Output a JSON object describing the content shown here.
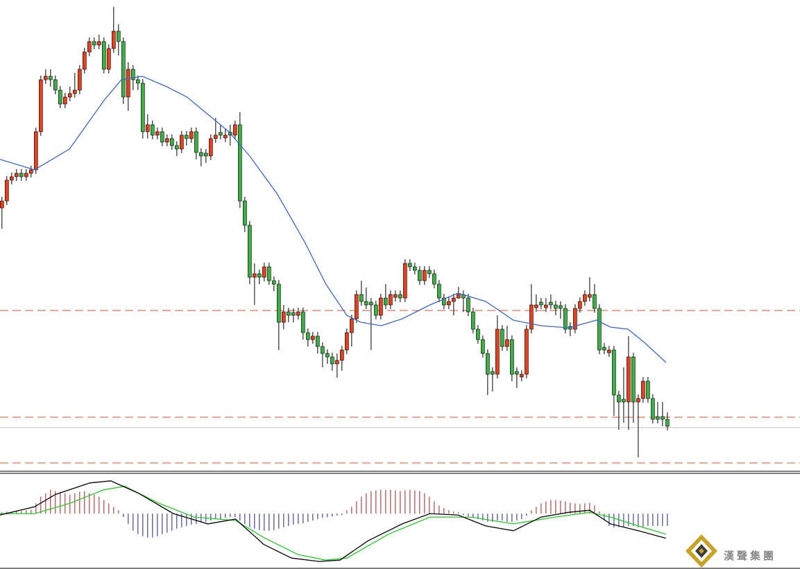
{
  "chart_data": [
    {
      "type": "candlestick",
      "up_color": "#e8401c",
      "down_color": "#3cb043",
      "xlim": [
        -0.4,
        164.3
      ],
      "ylim": [
        0,
        680
      ],
      "candles": [
        [
          380,
          396,
          350,
          390
        ],
        [
          390,
          426,
          384,
          420
        ],
        [
          420,
          431,
          414,
          425
        ],
        [
          425,
          436,
          419,
          430
        ],
        [
          430,
          436,
          419,
          425
        ],
        [
          425,
          436,
          419,
          430
        ],
        [
          430,
          441,
          424,
          435
        ],
        [
          435,
          496,
          429,
          490
        ],
        [
          490,
          571,
          484,
          565
        ],
        [
          565,
          580,
          559,
          570
        ],
        [
          570,
          580,
          555,
          565
        ],
        [
          565,
          571,
          544,
          550
        ],
        [
          550,
          556,
          524,
          530
        ],
        [
          530,
          546,
          524,
          540
        ],
        [
          540,
          555,
          534,
          545
        ],
        [
          545,
          575,
          539,
          550
        ],
        [
          550,
          586,
          544,
          580
        ],
        [
          580,
          611,
          574,
          605
        ],
        [
          605,
          626,
          599,
          620
        ],
        [
          620,
          626,
          609,
          615
        ],
        [
          615,
          630,
          609,
          620
        ],
        [
          620,
          626,
          574,
          580
        ],
        [
          580,
          616,
          574,
          610
        ],
        [
          610,
          670,
          604,
          635
        ],
        [
          635,
          645,
          600,
          620
        ],
        [
          620,
          626,
          530,
          540
        ],
        [
          540,
          590,
          520,
          580
        ],
        [
          580,
          586,
          550,
          565
        ],
        [
          565,
          571,
          550,
          560
        ],
        [
          560,
          566,
          480,
          490
        ],
        [
          490,
          515,
          480,
          500
        ],
        [
          500,
          506,
          479,
          485
        ],
        [
          485,
          496,
          479,
          490
        ],
        [
          490,
          496,
          469,
          475
        ],
        [
          475,
          486,
          469,
          480
        ],
        [
          480,
          486,
          464,
          470
        ],
        [
          470,
          476,
          455,
          465
        ],
        [
          465,
          491,
          459,
          485
        ],
        [
          485,
          491,
          470,
          480
        ],
        [
          480,
          496,
          474,
          490
        ],
        [
          490,
          496,
          450,
          460
        ],
        [
          460,
          466,
          440,
          455
        ],
        [
          459,
          465,
          445,
          455
        ],
        [
          455,
          486,
          449,
          480
        ],
        [
          480,
          510,
          474,
          485
        ],
        [
          489,
          500,
          479,
          485
        ],
        [
          481,
          495,
          475,
          485
        ],
        [
          489,
          500,
          470,
          485
        ],
        [
          485,
          506,
          479,
          500
        ],
        [
          500,
          518,
          380,
          390
        ],
        [
          390,
          396,
          345,
          355
        ],
        [
          355,
          361,
          270,
          280
        ],
        [
          280,
          300,
          240,
          285
        ],
        [
          285,
          291,
          270,
          280
        ],
        [
          280,
          301,
          274,
          295
        ],
        [
          295,
          301,
          269,
          275
        ],
        [
          275,
          281,
          260,
          270
        ],
        [
          270,
          276,
          175,
          215
        ],
        [
          215,
          240,
          205,
          230
        ],
        [
          230,
          236,
          215,
          225
        ],
        [
          229,
          235,
          215,
          225
        ],
        [
          225,
          236,
          219,
          230
        ],
        [
          230,
          236,
          190,
          200
        ],
        [
          200,
          206,
          180,
          190
        ],
        [
          190,
          201,
          184,
          195
        ],
        [
          195,
          201,
          170,
          180
        ],
        [
          180,
          186,
          150,
          170
        ],
        [
          170,
          176,
          155,
          165
        ],
        [
          165,
          171,
          145,
          155
        ],
        [
          155,
          170,
          135,
          160
        ],
        [
          160,
          181,
          145,
          175
        ],
        [
          175,
          206,
          169,
          200
        ],
        [
          200,
          226,
          180,
          220
        ],
        [
          220,
          261,
          214,
          255
        ],
        [
          255,
          275,
          239,
          245
        ],
        [
          245,
          265,
          234,
          240
        ],
        [
          244,
          250,
          175,
          240
        ],
        [
          240,
          246,
          219,
          225
        ],
        [
          225,
          256,
          219,
          250
        ],
        [
          250,
          270,
          234,
          240
        ],
        [
          240,
          261,
          234,
          255
        ],
        [
          251,
          261,
          245,
          255
        ],
        [
          255,
          261,
          244,
          250
        ],
        [
          250,
          306,
          244,
          300
        ],
        [
          300,
          306,
          289,
          295
        ],
        [
          295,
          301,
          284,
          290
        ],
        [
          290,
          296,
          269,
          275
        ],
        [
          275,
          296,
          269,
          290
        ],
        [
          290,
          296,
          279,
          285
        ],
        [
          285,
          291,
          264,
          270
        ],
        [
          270,
          276,
          244,
          250
        ],
        [
          250,
          256,
          234,
          240
        ],
        [
          240,
          251,
          234,
          245
        ],
        [
          245,
          256,
          225,
          250
        ],
        [
          250,
          266,
          249,
          255
        ],
        [
          255,
          261,
          230,
          250
        ],
        [
          250,
          256,
          224,
          230
        ],
        [
          230,
          236,
          199,
          205
        ],
        [
          205,
          211,
          184,
          190
        ],
        [
          190,
          196,
          164,
          170
        ],
        [
          170,
          176,
          110,
          140
        ],
        [
          144,
          150,
          115,
          140
        ],
        [
          140,
          225,
          134,
          205
        ],
        [
          205,
          211,
          174,
          180
        ],
        [
          180,
          210,
          174,
          190
        ],
        [
          190,
          196,
          130,
          140
        ],
        [
          144,
          150,
          120,
          140
        ],
        [
          136,
          146,
          130,
          140
        ],
        [
          140,
          211,
          134,
          205
        ],
        [
          205,
          270,
          199,
          240
        ],
        [
          236,
          255,
          230,
          240
        ],
        [
          244,
          250,
          234,
          240
        ],
        [
          236,
          250,
          230,
          240
        ],
        [
          244,
          255,
          234,
          240
        ],
        [
          240,
          246,
          225,
          235
        ],
        [
          239,
          245,
          220,
          235
        ],
        [
          235,
          241,
          199,
          205
        ],
        [
          209,
          215,
          195,
          205
        ],
        [
          205,
          241,
          199,
          235
        ],
        [
          235,
          251,
          229,
          245
        ],
        [
          245,
          261,
          239,
          255
        ],
        [
          251,
          280,
          245,
          255
        ],
        [
          255,
          270,
          229,
          235
        ],
        [
          235,
          241,
          169,
          175
        ],
        [
          179,
          185,
          169,
          175
        ],
        [
          171,
          181,
          165,
          175
        ],
        [
          175,
          181,
          80,
          110
        ],
        [
          110,
          116,
          60,
          100
        ],
        [
          104,
          150,
          70,
          100
        ],
        [
          100,
          195,
          60,
          165
        ],
        [
          165,
          171,
          70,
          100
        ],
        [
          100,
          111,
          20,
          105
        ],
        [
          105,
          136,
          99,
          130
        ],
        [
          130,
          136,
          99,
          105
        ],
        [
          105,
          111,
          69,
          75
        ],
        [
          79,
          100,
          69,
          75
        ],
        [
          79,
          100,
          65,
          75
        ],
        [
          75,
          85,
          59,
          65
        ]
      ],
      "ma": {
        "color": "#3a66d4",
        "x": [
          -0.4,
          6.7,
          13.9,
          21,
          24.6,
          28.9,
          33.9,
          38.1,
          42.4,
          46.7,
          51,
          56.7,
          62.4,
          66.7,
          71,
          73.9,
          78.1,
          82.4,
          88.1,
          93.9,
          99.6,
          105.3,
          111,
          116.7,
          122.4,
          125.3,
          128.9,
          132.4,
          136.7
        ],
        "values": [
          450,
          435,
          465,
          535,
          565,
          570,
          555,
          540,
          515,
          490,
          455,
          400,
          330,
          270,
          225,
          215,
          210,
          220,
          240,
          257,
          245,
          218,
          210,
          207,
          218,
          208,
          205,
          185,
          157
        ]
      },
      "levels": [
        232,
        78,
        12
      ],
      "level_color": "#e0502a",
      "price_line": 63,
      "price_line_color": "#c0c0c0"
    },
    {
      "type": "macd",
      "xlim": [
        -0.4,
        164.3
      ],
      "ylim": [
        -80,
        60
      ],
      "pos_color": "#a02020",
      "neg_color": "#1a237e",
      "histogram": [
        2,
        3,
        3,
        4,
        4,
        5,
        6,
        15,
        25,
        30,
        35,
        33,
        32,
        30,
        28,
        30,
        32,
        33,
        30,
        28,
        25,
        20,
        15,
        10,
        5,
        -5,
        -15,
        -25,
        -30,
        -33,
        -35,
        -35,
        -33,
        -30,
        -28,
        -25,
        -22,
        -20,
        -18,
        -16,
        -15,
        -13,
        -12,
        -10,
        -8,
        -8,
        -6,
        -5,
        -5,
        -10,
        -15,
        -20,
        -22,
        -24,
        -25,
        -25,
        -24,
        -22,
        -20,
        -18,
        -16,
        -15,
        -14,
        -12,
        -10,
        -8,
        -6,
        -5,
        -4,
        -3,
        -2,
        5,
        10,
        18,
        25,
        30,
        33,
        34,
        35,
        35,
        35,
        34,
        33,
        34,
        35,
        34,
        33,
        30,
        25,
        18,
        12,
        8,
        5,
        3,
        2,
        -2,
        -4,
        -6,
        -8,
        -10,
        -12,
        -12,
        -10,
        -10,
        -12,
        -12,
        -10,
        -8,
        -3,
        5,
        10,
        15,
        18,
        20,
        20,
        19,
        18,
        16,
        15,
        14,
        15,
        16,
        12,
        3,
        -10,
        -18,
        -20,
        -20,
        -20,
        -18,
        -18,
        -20,
        -20,
        -18,
        -18,
        -18,
        -18,
        -18
      ],
      "macd": {
        "color": "#000000",
        "x": [
          -0.4,
          6.7,
          11,
          18.1,
          22.4,
          28.1,
          35.3,
          42.4,
          48.1,
          53.9,
          59.6,
          65.3,
          69.6,
          75.3,
          82.4,
          88.1,
          93.9,
          99.6,
          105.3,
          111,
          116.7,
          121,
          125.3,
          131,
          136.7
        ],
        "values": [
          -2,
          10,
          28,
          45,
          48,
          30,
          0,
          -15,
          -8,
          -45,
          -65,
          -70,
          -68,
          -40,
          -15,
          0,
          -2,
          -18,
          -25,
          -5,
          2,
          5,
          -15,
          -25,
          -36
        ]
      },
      "signal": {
        "color": "#22cc22",
        "x": [
          -0.4,
          6.7,
          13.9,
          21,
          25.3,
          32.4,
          39.6,
          48.1,
          53.9,
          61,
          66.7,
          71,
          79.6,
          88.1,
          96.7,
          105.3,
          113.9,
          121,
          125.3,
          131,
          136.7
        ],
        "values": [
          0,
          0,
          15,
          35,
          40,
          15,
          -5,
          -10,
          -35,
          -60,
          -68,
          -65,
          -30,
          -5,
          -5,
          -15,
          -5,
          2,
          -5,
          -18,
          -30
        ]
      }
    }
  ],
  "watermark": "漢聲集團"
}
